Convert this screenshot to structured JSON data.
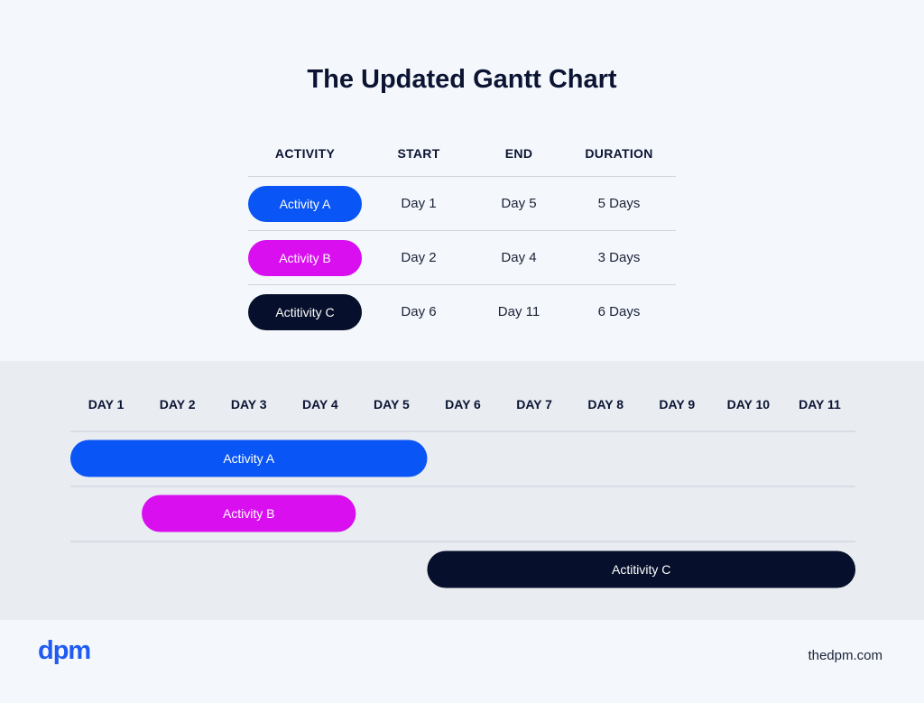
{
  "title": "The Updated Gantt Chart",
  "summary": {
    "headers": [
      "ACTIVITY",
      "START",
      "END",
      "DURATION"
    ],
    "rows": [
      {
        "activity": "Activity A",
        "start": "Day 1",
        "end": "Day 5",
        "duration": "5 Days"
      },
      {
        "activity": "Activity B",
        "start": "Day 2",
        "end": "Day 4",
        "duration": "3 Days"
      },
      {
        "activity": "Actitivity C",
        "start": "Day 6",
        "end": "Day 11",
        "duration": "6 Days"
      }
    ]
  },
  "chart_data": {
    "type": "gantt",
    "title": "The Updated Gantt Chart",
    "x_categories": [
      "DAY 1",
      "DAY 2",
      "DAY 3",
      "DAY 4",
      "DAY 5",
      "DAY 6",
      "DAY 7",
      "DAY 8",
      "DAY 9",
      "DAY 10",
      "DAY 11"
    ],
    "tasks": [
      {
        "name": "Activity A",
        "start": 1,
        "end": 5,
        "color": "#0a55f5"
      },
      {
        "name": "Activity B",
        "start": 2,
        "end": 4,
        "color": "#d90ff0"
      },
      {
        "name": "Actitivity C",
        "start": 6,
        "end": 11,
        "color": "#060f2b"
      }
    ],
    "grid": true
  },
  "footer": {
    "logo": "dpm",
    "site": "thedpm.com"
  },
  "colors": {
    "activity_a": "#0a55f5",
    "activity_b": "#d90ff0",
    "activity_c": "#060f2b",
    "brand": "#1f5bf2"
  }
}
